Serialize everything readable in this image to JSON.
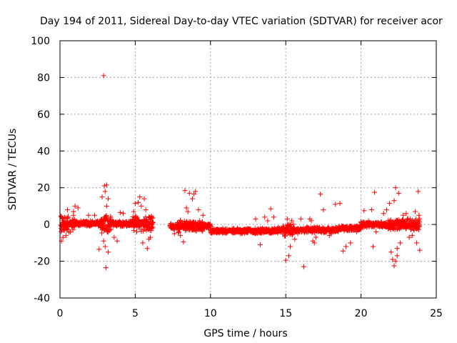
{
  "chart_data": {
    "type": "scatter",
    "title": "Day 194 of 2011, Sidereal Day-to-day VTEC variation (SDTVAR) for receiver acor",
    "xlabel": "GPS time / hours",
    "ylabel": "SDTVAR / TECUs",
    "xlim": [
      0,
      25
    ],
    "ylim": [
      -40,
      100
    ],
    "xticks": [
      "0",
      "5",
      "10",
      "15",
      "20",
      "25"
    ],
    "yticks": [
      "100",
      "80",
      "60",
      "40",
      "20",
      "0",
      "-20",
      "-40"
    ],
    "grid": true,
    "marker": "+",
    "color": "#ff0000",
    "data_gap_hours": [
      6.2,
      7.3
    ],
    "series": [
      {
        "name": "SDTVAR",
        "points": [
          [
            2.9,
            81
          ],
          [
            3.05,
            -23.5
          ],
          [
            2.95,
            21
          ],
          [
            3.1,
            21.5
          ],
          [
            3.0,
            18
          ],
          [
            3.2,
            14
          ],
          [
            2.8,
            15
          ],
          [
            3.1,
            10
          ],
          [
            2.9,
            -9
          ],
          [
            3.2,
            -15
          ],
          [
            3.0,
            -12
          ],
          [
            2.6,
            -13.5
          ],
          [
            1.0,
            10
          ],
          [
            0.9,
            7
          ],
          [
            1.2,
            9
          ],
          [
            0.5,
            8
          ],
          [
            0.2,
            -7
          ],
          [
            0.1,
            -9
          ],
          [
            0.4,
            -6
          ],
          [
            1.9,
            5
          ],
          [
            2.3,
            5
          ],
          [
            3.6,
            -7
          ],
          [
            3.8,
            -9
          ],
          [
            4.0,
            6.5
          ],
          [
            4.2,
            6
          ],
          [
            5.0,
            11.5
          ],
          [
            5.3,
            15
          ],
          [
            5.4,
            10
          ],
          [
            5.6,
            14
          ],
          [
            5.7,
            8
          ],
          [
            5.2,
            12
          ],
          [
            5.5,
            -10
          ],
          [
            5.8,
            -13
          ],
          [
            5.9,
            -8
          ],
          [
            6.0,
            -7
          ],
          [
            5.1,
            -4
          ],
          [
            4.9,
            7
          ],
          [
            6.1,
            4
          ],
          [
            8.3,
            18.5
          ],
          [
            8.6,
            17
          ],
          [
            8.9,
            16.5
          ],
          [
            9.0,
            18
          ],
          [
            8.8,
            14
          ],
          [
            8.4,
            9
          ],
          [
            8.5,
            7
          ],
          [
            8.2,
            -9.5
          ],
          [
            8.0,
            -6
          ],
          [
            7.6,
            -5
          ],
          [
            9.2,
            8
          ],
          [
            9.5,
            5
          ],
          [
            10.0,
            -3
          ],
          [
            11.0,
            -3.5
          ],
          [
            12.0,
            -4
          ],
          [
            13.0,
            -5
          ],
          [
            13.0,
            3
          ],
          [
            13.3,
            -11
          ],
          [
            13.6,
            4
          ],
          [
            14.0,
            8.5
          ],
          [
            13.8,
            2
          ],
          [
            14.2,
            4
          ],
          [
            14.5,
            -3
          ],
          [
            15.0,
            -19.5
          ],
          [
            15.2,
            -17
          ],
          [
            15.3,
            -12
          ],
          [
            15.1,
            3
          ],
          [
            15.4,
            2
          ],
          [
            15.6,
            -8
          ],
          [
            15.8,
            -5
          ],
          [
            16.0,
            3
          ],
          [
            16.2,
            -23
          ],
          [
            16.6,
            3
          ],
          [
            16.7,
            2
          ],
          [
            16.8,
            -9
          ],
          [
            16.9,
            -10
          ],
          [
            17.0,
            -7
          ],
          [
            17.3,
            16.5
          ],
          [
            17.5,
            8
          ],
          [
            17.6,
            -4
          ],
          [
            17.9,
            -6
          ],
          [
            18.0,
            -5
          ],
          [
            18.3,
            11
          ],
          [
            18.6,
            11.5
          ],
          [
            18.8,
            -14.5
          ],
          [
            19.0,
            -12
          ],
          [
            19.3,
            -10
          ],
          [
            19.7,
            -4
          ],
          [
            20.0,
            1
          ],
          [
            20.2,
            7.5
          ],
          [
            20.5,
            2
          ],
          [
            20.7,
            8
          ],
          [
            20.9,
            17.5
          ],
          [
            20.8,
            -12
          ],
          [
            21.0,
            -4
          ],
          [
            21.5,
            6
          ],
          [
            21.7,
            8
          ],
          [
            21.9,
            11.5
          ],
          [
            22.0,
            -15
          ],
          [
            22.1,
            -19
          ],
          [
            22.3,
            -20
          ],
          [
            22.2,
            -22.5
          ],
          [
            22.4,
            -17
          ],
          [
            22.3,
            20
          ],
          [
            22.5,
            17
          ],
          [
            22.2,
            13
          ],
          [
            22.4,
            -13
          ],
          [
            22.6,
            -10
          ],
          [
            22.8,
            5
          ],
          [
            23.0,
            6
          ],
          [
            23.2,
            -7
          ],
          [
            23.4,
            -6
          ],
          [
            23.6,
            7
          ],
          [
            23.8,
            18
          ],
          [
            23.9,
            -14
          ],
          [
            23.7,
            -10
          ],
          [
            23.85,
            5
          ]
        ]
      }
    ]
  }
}
